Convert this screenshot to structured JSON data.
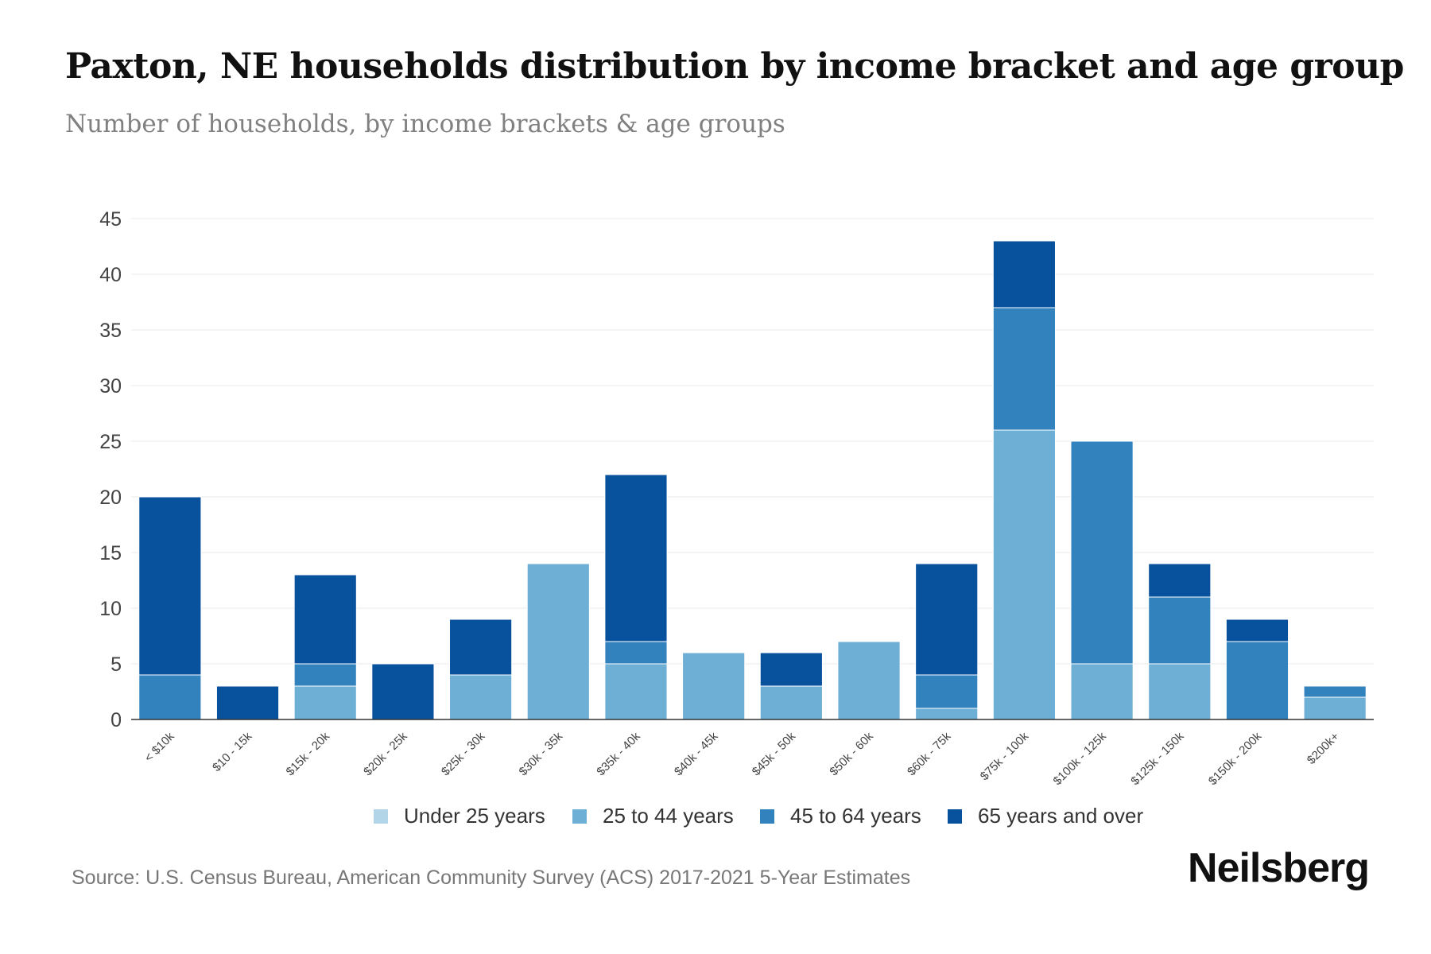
{
  "chart_data": {
    "type": "bar",
    "stacked": true,
    "title": "Paxton, NE households distribution by income bracket and age group",
    "subtitle": "Number of households, by income brackets & age groups",
    "xlabel": "",
    "ylabel": "",
    "ylim": [
      0,
      45
    ],
    "yticks": [
      0,
      5,
      10,
      15,
      20,
      25,
      30,
      35,
      40,
      45
    ],
    "grid": true,
    "legend_position": "bottom-center",
    "categories": [
      "< $10k",
      "$10 - 15k",
      "$15k - 20k",
      "$20k - 25k",
      "$25k - 30k",
      "$30k - 35k",
      "$35k - 40k",
      "$40k - 45k",
      "$45k - 50k",
      "$50k - 60k",
      "$60k - 75k",
      "$75k - 100k",
      "$100k - 125k",
      "$125k - 150k",
      "$150k - 200k",
      "$200k+"
    ],
    "series": [
      {
        "name": "Under 25 years",
        "color": "#b3d5e8",
        "values": [
          0,
          0,
          0,
          0,
          0,
          0,
          0,
          0,
          0,
          0,
          0,
          0,
          0,
          0,
          0,
          0
        ]
      },
      {
        "name": "25 to 44 years",
        "color": "#6eafd6",
        "values": [
          0,
          0,
          3,
          0,
          4,
          14,
          5,
          6,
          3,
          7,
          1,
          26,
          5,
          5,
          0,
          2
        ]
      },
      {
        "name": "45 to 64 years",
        "color": "#3282bd",
        "values": [
          4,
          0,
          2,
          0,
          0,
          0,
          2,
          0,
          0,
          0,
          3,
          11,
          20,
          6,
          7,
          1
        ]
      },
      {
        "name": "65 years and over",
        "color": "#08519c",
        "values": [
          16,
          3,
          8,
          5,
          5,
          0,
          15,
          0,
          3,
          0,
          10,
          6,
          0,
          3,
          2,
          0
        ]
      }
    ]
  },
  "source": "Source: U.S. Census Bureau, American Community Survey (ACS) 2017-2021 5-Year Estimates",
  "brand": "Neilsberg"
}
